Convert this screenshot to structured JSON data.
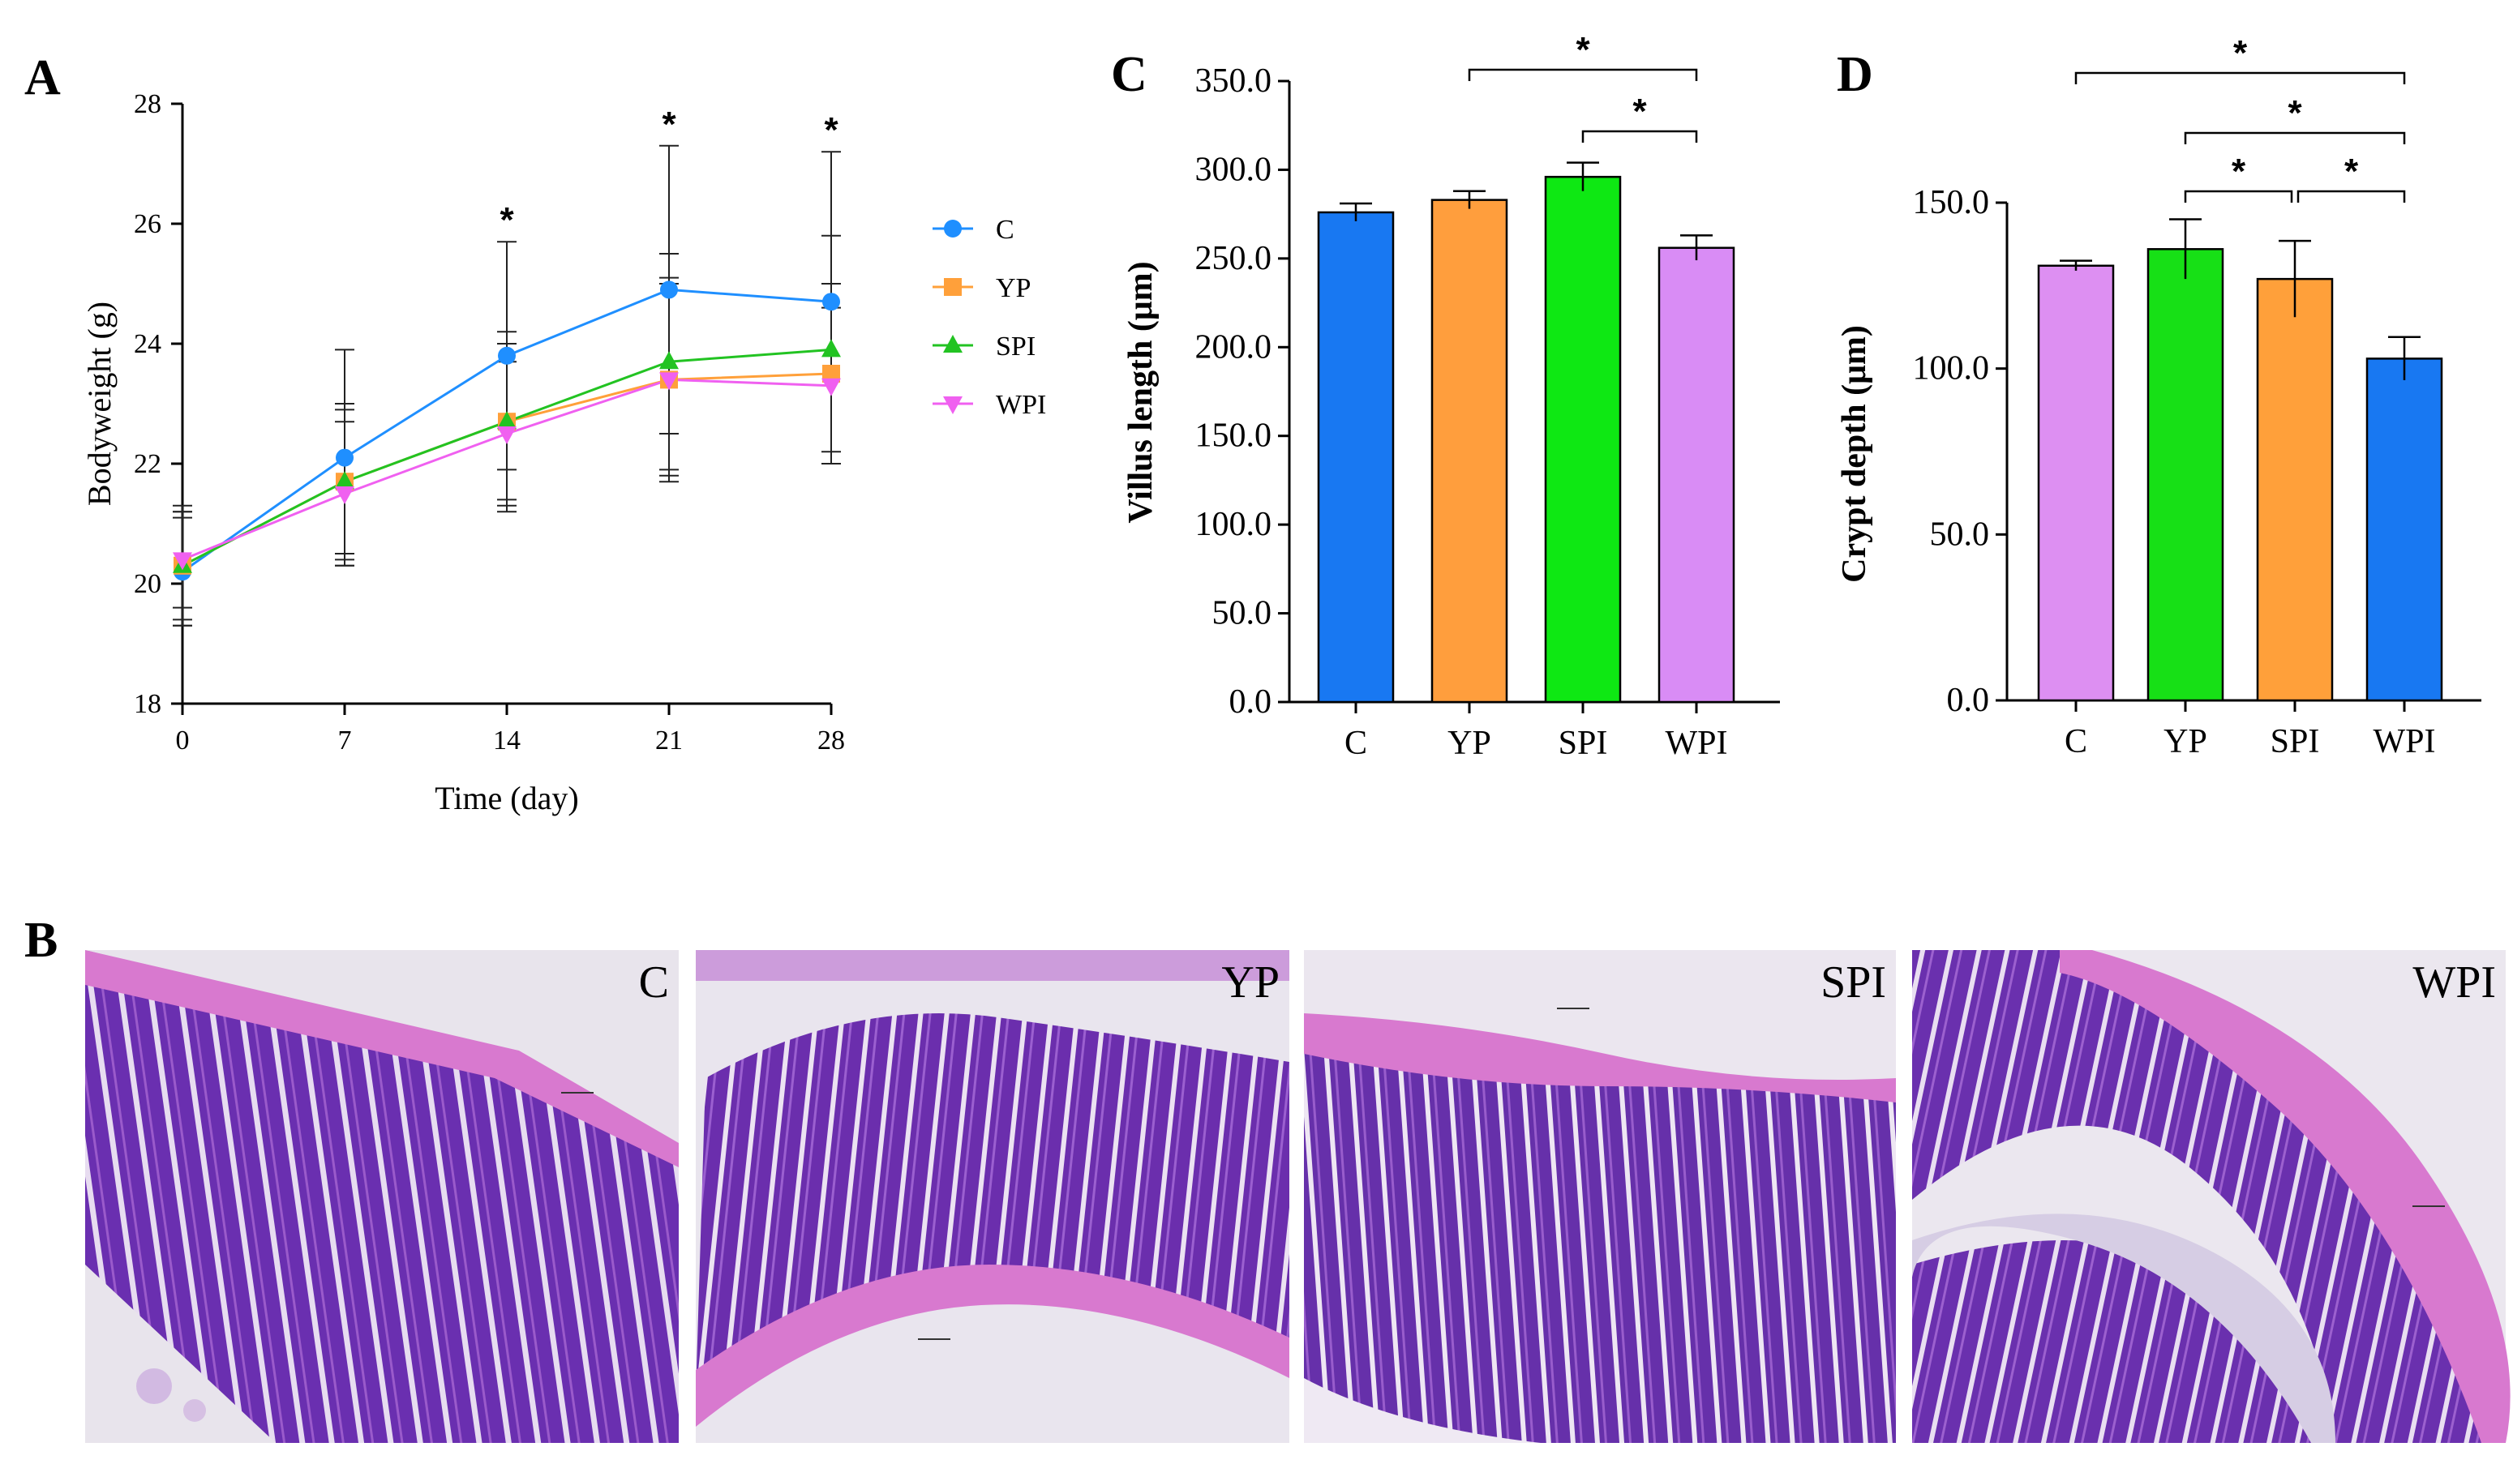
{
  "panel_labels": {
    "a": "A",
    "b": "B",
    "c": "C",
    "d": "D"
  },
  "significance_mark": "*",
  "colors": {
    "C": "#1f8fff",
    "YP": "#ffa03a",
    "SPI": "#1fe01f",
    "WPI": "#e87ff0"
  },
  "chart_data": [
    {
      "id": "A",
      "type": "line",
      "xlabel": "Time (day)",
      "ylabel": "Bodyweight (g)",
      "x": [
        0,
        7,
        14,
        21,
        28
      ],
      "xlim": [
        0,
        28
      ],
      "ylim": [
        18,
        28
      ],
      "yticks": [
        18,
        20,
        22,
        24,
        26,
        28
      ],
      "series": [
        {
          "name": "C",
          "color": "#1f8fff",
          "marker": "circle",
          "values": [
            20.2,
            22.1,
            23.8,
            24.9,
            24.7
          ],
          "sd": [
            0.9,
            1.8,
            1.9,
            2.4,
            2.5
          ]
        },
        {
          "name": "YP",
          "color": "#ffa03a",
          "marker": "square",
          "values": [
            20.3,
            21.7,
            22.7,
            23.4,
            23.5
          ],
          "sd": [
            1.0,
            1.3,
            1.5,
            1.7,
            1.5
          ]
        },
        {
          "name": "SPI",
          "color": "#22c322",
          "marker": "triangle",
          "values": [
            20.3,
            21.7,
            22.7,
            23.7,
            23.9
          ],
          "sd": [
            0.9,
            1.2,
            1.3,
            1.8,
            1.9
          ]
        },
        {
          "name": "WPI",
          "color": "#f060f0",
          "marker": "tri-down",
          "values": [
            20.4,
            21.5,
            22.5,
            23.4,
            23.3
          ],
          "sd": [
            0.8,
            1.2,
            1.2,
            1.6,
            1.3
          ]
        }
      ],
      "significance_days": [
        14,
        21,
        28
      ]
    },
    {
      "id": "C",
      "type": "bar",
      "ylabel": "Villus length (μm)",
      "categories": [
        "C",
        "YP",
        "SPI",
        "WPI"
      ],
      "values": [
        276,
        283,
        296,
        256
      ],
      "errors": [
        5,
        5,
        8,
        7
      ],
      "colors": [
        "#1878f2",
        "#ff9e3d",
        "#0ee813",
        "#d98cf5"
      ],
      "ylim": [
        0,
        350
      ],
      "yticks": [
        "0.0",
        "50.0",
        "100.0",
        "150.0",
        "200.0",
        "250.0",
        "300.0",
        "350.0"
      ],
      "comparisons": [
        {
          "from": "YP",
          "to": "WPI"
        },
        {
          "from": "SPI",
          "to": "WPI"
        }
      ]
    },
    {
      "id": "D",
      "type": "bar",
      "ylabel": "Crypt depth (μm)",
      "categories": [
        "C",
        "YP",
        "SPI",
        "WPI"
      ],
      "values": [
        131,
        136,
        127,
        103
      ],
      "errors": [
        1.5,
        9,
        11.5,
        6.5
      ],
      "colors": [
        "#dd8ff2",
        "#17e016",
        "#ffa03a",
        "#1878f2"
      ],
      "ylim": [
        0,
        150
      ],
      "yticks": [
        "0.0",
        "50.0",
        "100.0",
        "150.0"
      ],
      "comparisons": [
        {
          "from": "C",
          "to": "WPI"
        },
        {
          "from": "YP",
          "to": "WPI"
        },
        {
          "from": "YP",
          "to": "SPI"
        },
        {
          "from": "SPI",
          "to": "WPI"
        }
      ]
    }
  ],
  "micrographs": [
    {
      "label": "C"
    },
    {
      "label": "YP"
    },
    {
      "label": "SPI"
    },
    {
      "label": "WPI"
    }
  ]
}
